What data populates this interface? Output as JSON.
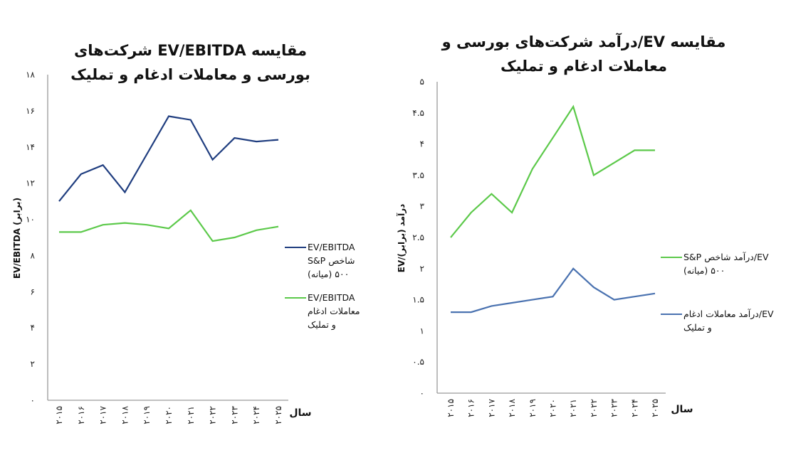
{
  "charts": [
    {
      "type": "line",
      "title": "مقایسه EV/EBITDA شرکت‌های بورسی و معاملات ادغام و تملیک",
      "xlabel": "سال",
      "ylabel": "EV/EBITDA (برابر)",
      "categories": [
        "۲۰۱۵",
        "۲۰۱۶",
        "۲۰۱۷",
        "۲۰۱۸",
        "۲۰۱۹",
        "۲۰۲۰",
        "۲۰۲۱",
        "۲۰۲۲",
        "۲۰۲۳",
        "۲۰۲۴",
        "۲۰۲۵"
      ],
      "x": [
        2015,
        2016,
        2017,
        2018,
        2019,
        2020,
        2021,
        2022,
        2023,
        2024,
        2025
      ],
      "ylim": [
        0,
        18
      ],
      "yticks": [
        0,
        2,
        4,
        6,
        8,
        10,
        12,
        14,
        16,
        18
      ],
      "ytick_labels": [
        "۰",
        "۲",
        "۴",
        "۶",
        "۸",
        "۱۰",
        "۱۲",
        "۱۴",
        "۱۶",
        "۱۸"
      ],
      "grid": false,
      "legend_position": "right",
      "series": [
        {
          "name": "EV/EBITDA شاخص S&P ۵۰۰ (میانه)",
          "color": "#1f3d7f",
          "values": [
            11.0,
            12.5,
            13.0,
            11.5,
            13.6,
            15.7,
            15.5,
            13.3,
            14.5,
            14.3,
            14.4
          ]
        },
        {
          "name": "EV/EBITDA معاملات ادغام و تملیک",
          "color": "#5cc94a",
          "values": [
            9.3,
            9.3,
            9.7,
            9.8,
            9.7,
            9.5,
            10.5,
            8.8,
            9.0,
            9.4,
            9.6
          ]
        }
      ]
    },
    {
      "type": "line",
      "title": "مقایسه EV/درآمد شرکت‌های بورسی و معاملات ادغام و تملیک",
      "xlabel": "سال",
      "ylabel": "EV/درآمد (برابر)",
      "categories": [
        "۲۰۱۵",
        "۲۰۱۶",
        "۲۰۱۷",
        "۲۰۱۸",
        "۲۰۱۹",
        "۲۰۲۰",
        "۲۰۲۱",
        "۲۰۲۲",
        "۲۰۲۳",
        "۲۰۲۴",
        "۲۰۲۵"
      ],
      "x": [
        2015,
        2016,
        2017,
        2018,
        2019,
        2020,
        2021,
        2022,
        2023,
        2024,
        2025
      ],
      "ylim": [
        0,
        5
      ],
      "yticks": [
        0,
        0.5,
        1,
        1.5,
        2,
        2.5,
        3,
        3.5,
        4,
        4.5,
        5
      ],
      "ytick_labels": [
        "۰",
        "۰.۵",
        "۱",
        "۱.۵",
        "۲",
        "۲.۵",
        "۳",
        "۳.۵",
        "۴",
        "۴.۵",
        "۵"
      ],
      "grid": false,
      "legend_position": "right",
      "series": [
        {
          "name": "EV/درآمد شاخص S&P ۵۰۰ (میانه)",
          "color": "#5cc94a",
          "values": [
            2.5,
            2.9,
            3.2,
            2.9,
            3.6,
            4.1,
            4.6,
            3.5,
            3.7,
            3.9,
            3.9
          ]
        },
        {
          "name": "EV/درآمد معاملات ادغام و تملیک",
          "color": "#4a72b0",
          "values": [
            1.3,
            1.3,
            1.4,
            1.45,
            1.5,
            1.55,
            2.0,
            1.7,
            1.5,
            1.55,
            1.6
          ]
        }
      ]
    }
  ]
}
